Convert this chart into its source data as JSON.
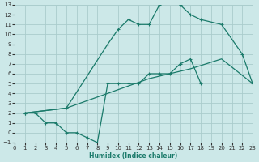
{
  "xlabel": "Humidex (Indice chaleur)",
  "bg_color": "#cce8e8",
  "grid_color": "#aacccc",
  "line_color": "#1a7a6a",
  "xlim": [
    0,
    23
  ],
  "ylim": [
    -1,
    13
  ],
  "xticks": [
    0,
    1,
    2,
    3,
    4,
    5,
    6,
    7,
    8,
    9,
    10,
    11,
    12,
    13,
    14,
    15,
    16,
    17,
    18,
    19,
    20,
    21,
    22,
    23
  ],
  "yticks": [
    -1,
    0,
    1,
    2,
    3,
    4,
    5,
    6,
    7,
    8,
    9,
    10,
    11,
    12,
    13
  ],
  "curve1_x": [
    1,
    2,
    3,
    4,
    5,
    6,
    7,
    8,
    9,
    10,
    11,
    12,
    13,
    14,
    15,
    16,
    17,
    18
  ],
  "curve1_y": [
    2,
    2,
    1,
    1,
    0,
    0,
    -0.5,
    -1,
    5,
    5,
    5,
    5,
    6,
    6,
    6,
    7,
    7.5,
    5
  ],
  "curve2_x": [
    1,
    5,
    9,
    10,
    11,
    12,
    13,
    14,
    15,
    16,
    17,
    18,
    20,
    22,
    23
  ],
  "curve2_y": [
    2,
    2.5,
    9,
    10.5,
    11.5,
    11,
    11,
    13,
    13.5,
    13,
    12,
    11.5,
    11,
    8,
    5
  ],
  "curve3_x": [
    1,
    5,
    9,
    13,
    17,
    20,
    23
  ],
  "curve3_y": [
    2,
    2.5,
    4,
    5.5,
    6.5,
    7.5,
    5
  ]
}
